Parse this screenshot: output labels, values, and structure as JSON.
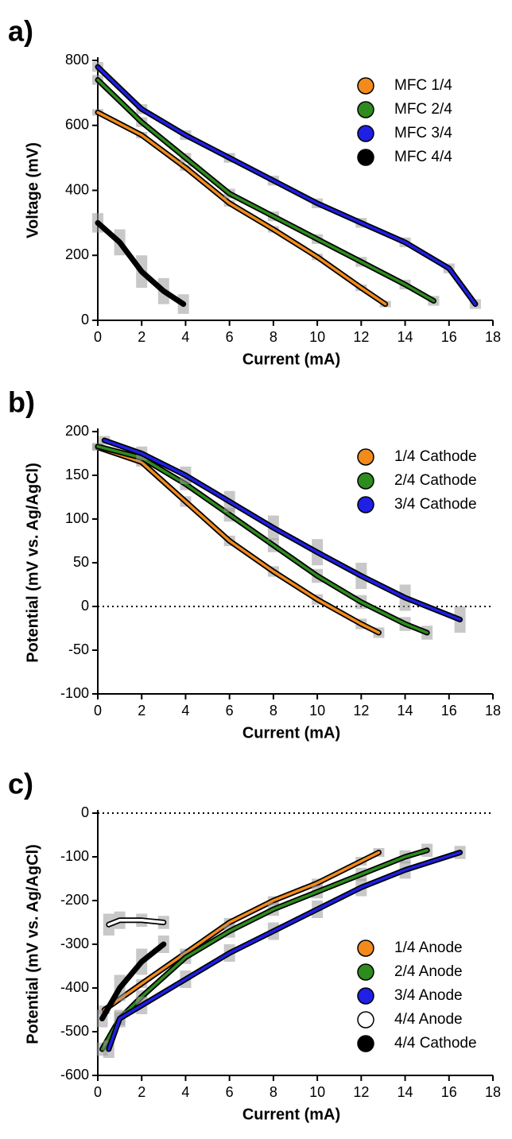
{
  "chart_data": [
    {
      "type": "line",
      "label": "a)",
      "xlabel": "Current (mA)",
      "ylabel": "Voltage (mV)",
      "xlim": [
        0,
        18
      ],
      "xticks": [
        0,
        2,
        4,
        6,
        8,
        10,
        12,
        14,
        16,
        18
      ],
      "ylim": [
        0,
        800
      ],
      "yticks": [
        0,
        200,
        400,
        600,
        800
      ],
      "legend": "upper right",
      "series": [
        {
          "name": "MFC 1/4",
          "color": "#f28a1c",
          "x": [
            0,
            2,
            4,
            6,
            8,
            10,
            12,
            13.1
          ],
          "values": [
            640,
            570,
            470,
            360,
            280,
            195,
            100,
            50
          ],
          "errors": [
            10,
            10,
            10,
            10,
            10,
            10,
            10,
            10
          ]
        },
        {
          "name": "MFC 2/4",
          "color": "#2e8b1e",
          "x": [
            0,
            2,
            4,
            6,
            8,
            10,
            12,
            14,
            15.3
          ],
          "values": [
            740,
            610,
            500,
            390,
            320,
            250,
            180,
            110,
            60
          ],
          "errors": [
            15,
            15,
            15,
            15,
            15,
            15,
            15,
            15,
            15
          ]
        },
        {
          "name": "MFC 3/4",
          "color": "#1f1fe6",
          "x": [
            0,
            2,
            4,
            6,
            8,
            10,
            12,
            14,
            16,
            17.2
          ],
          "values": [
            780,
            650,
            570,
            500,
            430,
            360,
            300,
            240,
            160,
            50
          ],
          "errors": [
            15,
            15,
            15,
            15,
            15,
            15,
            15,
            15,
            15,
            15
          ]
        },
        {
          "name": "MFC 4/4",
          "color": "#000000",
          "x": [
            0,
            1,
            2,
            3,
            3.9
          ],
          "values": [
            300,
            240,
            150,
            90,
            50
          ],
          "errors": [
            30,
            40,
            50,
            40,
            30
          ]
        }
      ]
    },
    {
      "type": "line",
      "label": "b)",
      "xlabel": "Current (mA)",
      "ylabel": "Potential (mV vs. Ag/AgCl)",
      "xlim": [
        0,
        18
      ],
      "xticks": [
        0,
        2,
        4,
        6,
        8,
        10,
        12,
        14,
        16,
        18
      ],
      "ylim": [
        -100,
        200
      ],
      "yticks": [
        -100,
        -50,
        0,
        50,
        100,
        150,
        200
      ],
      "refline": 0,
      "legend": "upper right",
      "series": [
        {
          "name": "1/4 Cathode",
          "color": "#f28a1c",
          "x": [
            0,
            2,
            4,
            6,
            8,
            10,
            12,
            12.8
          ],
          "values": [
            182,
            165,
            120,
            75,
            40,
            8,
            -20,
            -30
          ],
          "errors": [
            4,
            5,
            6,
            6,
            6,
            6,
            6,
            6
          ]
        },
        {
          "name": "2/4 Cathode",
          "color": "#2e8b1e",
          "x": [
            0,
            2,
            4,
            6,
            8,
            10,
            12,
            14,
            15
          ],
          "values": [
            183,
            170,
            140,
            105,
            70,
            35,
            5,
            -20,
            -30
          ],
          "errors": [
            4,
            5,
            7,
            8,
            8,
            8,
            8,
            8,
            8
          ]
        },
        {
          "name": "3/4 Cathode",
          "color": "#1f1fe6",
          "x": [
            0.3,
            2,
            4,
            6,
            8,
            10,
            12,
            14,
            16.5
          ],
          "values": [
            190,
            175,
            150,
            120,
            90,
            62,
            35,
            10,
            -15
          ],
          "errors": [
            5,
            8,
            10,
            12,
            14,
            15,
            15,
            15,
            15
          ]
        }
      ]
    },
    {
      "type": "line",
      "label": "c)",
      "xlabel": "Current (mA)",
      "ylabel": "Potential (mV vs. Ag/AgCl)",
      "xlim": [
        0,
        18
      ],
      "xticks": [
        0,
        2,
        4,
        6,
        8,
        10,
        12,
        14,
        16,
        18
      ],
      "ylim": [
        -600,
        0
      ],
      "yticks": [
        -600,
        -500,
        -400,
        -300,
        -200,
        -100,
        0
      ],
      "refline": 0,
      "legend": "lower right",
      "series": [
        {
          "name": "1/4 Anode",
          "color": "#f28a1c",
          "x": [
            0.3,
            2,
            4,
            6,
            8,
            10,
            12,
            12.8
          ],
          "values": [
            -450,
            -390,
            -320,
            -250,
            -200,
            -160,
            -110,
            -90
          ],
          "errors": [
            10,
            10,
            10,
            10,
            10,
            10,
            10,
            10
          ]
        },
        {
          "name": "2/4 Anode",
          "color": "#2e8b1e",
          "x": [
            0.2,
            1,
            2,
            4,
            6,
            8,
            10,
            12,
            14,
            15
          ],
          "values": [
            -540,
            -470,
            -420,
            -330,
            -270,
            -220,
            -180,
            -140,
            -100,
            -85
          ],
          "errors": [
            15,
            15,
            15,
            15,
            15,
            15,
            15,
            15,
            15,
            15
          ]
        },
        {
          "name": "3/4 Anode",
          "color": "#1f1fe6",
          "x": [
            0.5,
            1,
            2,
            4,
            6,
            8,
            10,
            12,
            14,
            16.5
          ],
          "values": [
            -540,
            -470,
            -440,
            -380,
            -320,
            -270,
            -220,
            -170,
            -130,
            -90
          ],
          "errors": [
            20,
            20,
            20,
            20,
            20,
            20,
            20,
            20,
            20,
            15
          ]
        },
        {
          "name": "4/4 Anode",
          "color": "#ffffff",
          "x": [
            0.5,
            1,
            2,
            3
          ],
          "values": [
            -255,
            -245,
            -245,
            -250
          ],
          "errors": [
            25,
            20,
            15,
            15
          ]
        },
        {
          "name": "4/4 Cathode",
          "color": "#000000",
          "x": [
            0.2,
            1,
            2,
            3
          ],
          "values": [
            -470,
            -400,
            -340,
            -300
          ],
          "errors": [
            20,
            30,
            30,
            20
          ]
        }
      ]
    }
  ]
}
